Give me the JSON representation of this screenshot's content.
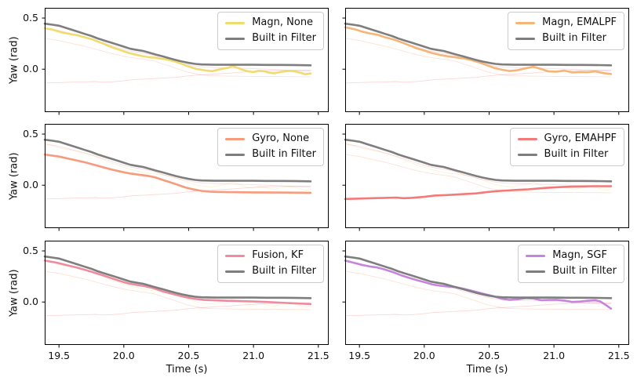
{
  "chart_data": {
    "type": "line",
    "title": "",
    "xlabel": "Time (s)",
    "ylabel": "Yaw (rad)",
    "xlim": [
      19.39,
      21.58
    ],
    "ylim": [
      -0.42,
      0.6
    ],
    "x_tick_values": [
      19.5,
      20.0,
      20.5,
      21.0,
      21.5
    ],
    "x_tick_labels": [
      "19.5",
      "20.0",
      "20.5",
      "21.0",
      "21.5"
    ],
    "y_tick_values": [
      0.5,
      0.0
    ],
    "y_tick_labels": [
      "0.5",
      "0.0"
    ],
    "grid": false,
    "legend_position": "upper right",
    "colors": {
      "axes_spine": "#000000",
      "text": "#111111",
      "legend_border": "#cccccc"
    },
    "traces": {
      "builtin": {
        "label": "Built in Filter",
        "color": "#7e7e7e",
        "points": [
          [
            19.39,
            0.445
          ],
          [
            19.45,
            0.435
          ],
          [
            19.5,
            0.425
          ],
          [
            19.55,
            0.405
          ],
          [
            19.6,
            0.385
          ],
          [
            19.65,
            0.365
          ],
          [
            19.7,
            0.345
          ],
          [
            19.75,
            0.325
          ],
          [
            19.8,
            0.3
          ],
          [
            19.85,
            0.28
          ],
          [
            19.9,
            0.26
          ],
          [
            19.95,
            0.24
          ],
          [
            20.0,
            0.22
          ],
          [
            20.05,
            0.2
          ],
          [
            20.1,
            0.188
          ],
          [
            20.15,
            0.178
          ],
          [
            20.2,
            0.16
          ],
          [
            20.25,
            0.142
          ],
          [
            20.3,
            0.125
          ],
          [
            20.35,
            0.108
          ],
          [
            20.4,
            0.09
          ],
          [
            20.45,
            0.075
          ],
          [
            20.5,
            0.062
          ],
          [
            20.55,
            0.052
          ],
          [
            20.6,
            0.046
          ],
          [
            20.7,
            0.043
          ],
          [
            20.8,
            0.043
          ],
          [
            20.9,
            0.043
          ],
          [
            21.0,
            0.043
          ],
          [
            21.1,
            0.042
          ],
          [
            21.2,
            0.042
          ],
          [
            21.3,
            0.041
          ],
          [
            21.44,
            0.038
          ]
        ]
      },
      "magn": {
        "label": "Magn, None",
        "color": "#f0dc6e",
        "points": [
          [
            19.39,
            0.4
          ],
          [
            19.44,
            0.39
          ],
          [
            19.48,
            0.375
          ],
          [
            19.52,
            0.36
          ],
          [
            19.56,
            0.35
          ],
          [
            19.6,
            0.34
          ],
          [
            19.64,
            0.332
          ],
          [
            19.68,
            0.318
          ],
          [
            19.72,
            0.305
          ],
          [
            19.76,
            0.29
          ],
          [
            19.8,
            0.27
          ],
          [
            19.84,
            0.25
          ],
          [
            19.88,
            0.228
          ],
          [
            19.92,
            0.21
          ],
          [
            19.96,
            0.192
          ],
          [
            20.0,
            0.175
          ],
          [
            20.04,
            0.158
          ],
          [
            20.08,
            0.146
          ],
          [
            20.12,
            0.134
          ],
          [
            20.16,
            0.124
          ],
          [
            20.2,
            0.116
          ],
          [
            20.24,
            0.112
          ],
          [
            20.28,
            0.104
          ],
          [
            20.32,
            0.098
          ],
          [
            20.36,
            0.086
          ],
          [
            20.4,
            0.072
          ],
          [
            20.44,
            0.055
          ],
          [
            20.48,
            0.035
          ],
          [
            20.52,
            0.018
          ],
          [
            20.56,
            0.002
          ],
          [
            20.6,
            -0.006
          ],
          [
            20.64,
            -0.014
          ],
          [
            20.68,
            -0.02
          ],
          [
            20.72,
            -0.008
          ],
          [
            20.76,
            0.004
          ],
          [
            20.8,
            0.012
          ],
          [
            20.84,
            0.03
          ],
          [
            20.88,
            0.012
          ],
          [
            20.92,
            -0.008
          ],
          [
            20.96,
            -0.022
          ],
          [
            21.0,
            -0.028
          ],
          [
            21.04,
            -0.016
          ],
          [
            21.08,
            -0.02
          ],
          [
            21.12,
            -0.034
          ],
          [
            21.16,
            -0.04
          ],
          [
            21.2,
            -0.03
          ],
          [
            21.24,
            -0.022
          ],
          [
            21.28,
            -0.016
          ],
          [
            21.32,
            -0.022
          ],
          [
            21.36,
            -0.035
          ],
          [
            21.4,
            -0.05
          ],
          [
            21.44,
            -0.042
          ]
        ]
      },
      "emalpf": {
        "label": "Magn, EMALPF",
        "color": "#f5b577",
        "points": [
          [
            19.39,
            0.41
          ],
          [
            19.46,
            0.392
          ],
          [
            19.52,
            0.368
          ],
          [
            19.58,
            0.35
          ],
          [
            19.64,
            0.336
          ],
          [
            19.7,
            0.312
          ],
          [
            19.76,
            0.292
          ],
          [
            19.82,
            0.265
          ],
          [
            19.88,
            0.235
          ],
          [
            19.94,
            0.205
          ],
          [
            20.0,
            0.182
          ],
          [
            20.06,
            0.158
          ],
          [
            20.12,
            0.14
          ],
          [
            20.18,
            0.126
          ],
          [
            20.24,
            0.116
          ],
          [
            20.3,
            0.106
          ],
          [
            20.36,
            0.09
          ],
          [
            20.42,
            0.068
          ],
          [
            20.48,
            0.04
          ],
          [
            20.54,
            0.012
          ],
          [
            20.6,
            -0.006
          ],
          [
            20.66,
            -0.018
          ],
          [
            20.72,
            -0.01
          ],
          [
            20.78,
            0.008
          ],
          [
            20.84,
            0.024
          ],
          [
            20.9,
            0.002
          ],
          [
            20.96,
            -0.022
          ],
          [
            21.02,
            -0.024
          ],
          [
            21.08,
            -0.014
          ],
          [
            21.14,
            -0.032
          ],
          [
            21.2,
            -0.028
          ],
          [
            21.26,
            -0.03
          ],
          [
            21.32,
            -0.022
          ],
          [
            21.38,
            -0.038
          ],
          [
            21.44,
            -0.048
          ]
        ]
      },
      "gyro": {
        "label": "Gyro, None",
        "color": "#f89b7c",
        "points": [
          [
            19.39,
            0.3
          ],
          [
            19.5,
            0.28
          ],
          [
            19.6,
            0.252
          ],
          [
            19.7,
            0.224
          ],
          [
            19.8,
            0.19
          ],
          [
            19.9,
            0.155
          ],
          [
            20.0,
            0.126
          ],
          [
            20.06,
            0.112
          ],
          [
            20.12,
            0.102
          ],
          [
            20.18,
            0.092
          ],
          [
            20.24,
            0.078
          ],
          [
            20.3,
            0.052
          ],
          [
            20.36,
            0.028
          ],
          [
            20.42,
            0.002
          ],
          [
            20.48,
            -0.024
          ],
          [
            20.54,
            -0.042
          ],
          [
            20.6,
            -0.056
          ],
          [
            20.66,
            -0.063
          ],
          [
            20.72,
            -0.066
          ],
          [
            20.8,
            -0.068
          ],
          [
            21.0,
            -0.07
          ],
          [
            21.2,
            -0.072
          ],
          [
            21.44,
            -0.074
          ]
        ]
      },
      "emahpf": {
        "label": "Gyro, EMAHPF",
        "color": "#f47a7a",
        "points": [
          [
            19.39,
            -0.135
          ],
          [
            19.5,
            -0.131
          ],
          [
            19.6,
            -0.127
          ],
          [
            19.7,
            -0.124
          ],
          [
            19.78,
            -0.121
          ],
          [
            19.84,
            -0.127
          ],
          [
            19.9,
            -0.124
          ],
          [
            20.0,
            -0.114
          ],
          [
            20.08,
            -0.101
          ],
          [
            20.16,
            -0.097
          ],
          [
            20.24,
            -0.092
          ],
          [
            20.32,
            -0.086
          ],
          [
            20.4,
            -0.08
          ],
          [
            20.48,
            -0.068
          ],
          [
            20.56,
            -0.058
          ],
          [
            20.64,
            -0.052
          ],
          [
            20.72,
            -0.046
          ],
          [
            20.8,
            -0.04
          ],
          [
            20.88,
            -0.032
          ],
          [
            20.96,
            -0.024
          ],
          [
            21.04,
            -0.019
          ],
          [
            21.12,
            -0.015
          ],
          [
            21.2,
            -0.012
          ],
          [
            21.3,
            -0.01
          ],
          [
            21.44,
            -0.01
          ]
        ]
      },
      "kf": {
        "label": "Fusion, KF",
        "color": "#ef8ba1",
        "points": [
          [
            19.39,
            0.405
          ],
          [
            19.48,
            0.385
          ],
          [
            19.56,
            0.36
          ],
          [
            19.64,
            0.336
          ],
          [
            19.72,
            0.308
          ],
          [
            19.8,
            0.276
          ],
          [
            19.88,
            0.243
          ],
          [
            19.96,
            0.21
          ],
          [
            20.04,
            0.18
          ],
          [
            20.1,
            0.167
          ],
          [
            20.16,
            0.155
          ],
          [
            20.22,
            0.138
          ],
          [
            20.3,
            0.104
          ],
          [
            20.38,
            0.078
          ],
          [
            20.46,
            0.052
          ],
          [
            20.54,
            0.032
          ],
          [
            20.62,
            0.02
          ],
          [
            20.7,
            0.016
          ],
          [
            20.8,
            0.012
          ],
          [
            20.9,
            0.009
          ],
          [
            21.0,
            0.005
          ],
          [
            21.1,
            0.0
          ],
          [
            21.2,
            -0.006
          ],
          [
            21.3,
            -0.012
          ],
          [
            21.44,
            -0.02
          ]
        ]
      },
      "sgf": {
        "label": "Magn, SGF",
        "color": "#c684dc",
        "points": [
          [
            19.39,
            0.405
          ],
          [
            19.46,
            0.382
          ],
          [
            19.52,
            0.362
          ],
          [
            19.58,
            0.348
          ],
          [
            19.64,
            0.338
          ],
          [
            19.7,
            0.316
          ],
          [
            19.76,
            0.292
          ],
          [
            19.82,
            0.262
          ],
          [
            19.88,
            0.238
          ],
          [
            19.94,
            0.215
          ],
          [
            20.0,
            0.194
          ],
          [
            20.06,
            0.172
          ],
          [
            20.12,
            0.16
          ],
          [
            20.18,
            0.152
          ],
          [
            20.24,
            0.146
          ],
          [
            20.3,
            0.13
          ],
          [
            20.36,
            0.112
          ],
          [
            20.42,
            0.092
          ],
          [
            20.48,
            0.072
          ],
          [
            20.54,
            0.054
          ],
          [
            20.6,
            0.032
          ],
          [
            20.66,
            0.02
          ],
          [
            20.72,
            0.026
          ],
          [
            20.78,
            0.038
          ],
          [
            20.84,
            0.034
          ],
          [
            20.9,
            0.018
          ],
          [
            20.96,
            0.02
          ],
          [
            21.02,
            0.022
          ],
          [
            21.08,
            0.014
          ],
          [
            21.14,
            0.0
          ],
          [
            21.2,
            0.004
          ],
          [
            21.26,
            0.012
          ],
          [
            21.32,
            0.016
          ],
          [
            21.36,
            0.004
          ],
          [
            21.4,
            -0.03
          ],
          [
            21.44,
            -0.065
          ]
        ]
      }
    },
    "subplots": [
      {
        "id": "tl",
        "main": "magn",
        "faint": [
          "gyro",
          "emahpf",
          "kf"
        ],
        "legend": [
          "magn",
          "builtin"
        ],
        "show_x_labels": false,
        "show_y_labels": true
      },
      {
        "id": "tr",
        "main": "emalpf",
        "faint": [
          "gyro",
          "emahpf",
          "kf"
        ],
        "legend": [
          "emalpf",
          "builtin"
        ],
        "show_x_labels": false,
        "show_y_labels": false
      },
      {
        "id": "ml",
        "main": "gyro",
        "faint": [
          "magn",
          "emahpf",
          "kf"
        ],
        "legend": [
          "gyro",
          "builtin"
        ],
        "show_x_labels": false,
        "show_y_labels": true
      },
      {
        "id": "mr",
        "main": "emahpf",
        "faint": [
          "magn",
          "gyro",
          "kf"
        ],
        "legend": [
          "emahpf",
          "builtin"
        ],
        "show_x_labels": false,
        "show_y_labels": false
      },
      {
        "id": "bl",
        "main": "kf",
        "faint": [
          "magn",
          "gyro",
          "emahpf"
        ],
        "legend": [
          "kf",
          "builtin"
        ],
        "show_x_labels": true,
        "show_y_labels": true
      },
      {
        "id": "br",
        "main": "sgf",
        "faint": [
          "gyro",
          "emahpf",
          "kf"
        ],
        "legend": [
          "sgf",
          "builtin"
        ],
        "show_x_labels": true,
        "show_y_labels": false
      }
    ]
  }
}
